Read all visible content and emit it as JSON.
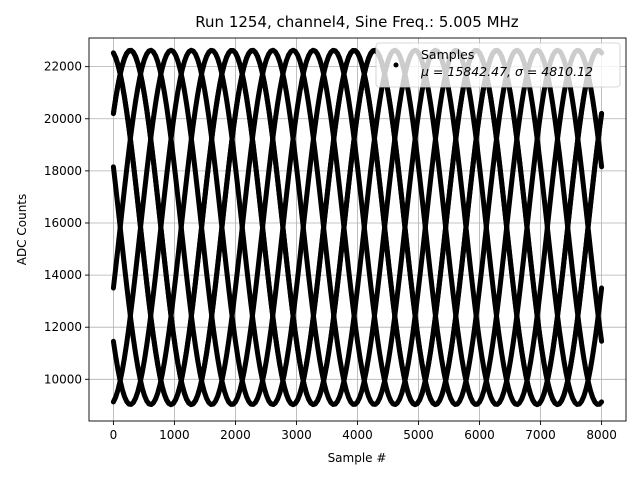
{
  "chart_data": {
    "type": "scatter",
    "title": "Run 1254, channel4, Sine Freq.: 5.005 MHz",
    "xlabel": "Sample #",
    "ylabel": "ADC Counts",
    "xlim": [
      -400,
      8400
    ],
    "ylim": [
      8400,
      23100
    ],
    "xticks": [
      0,
      1000,
      2000,
      3000,
      4000,
      5000,
      6000,
      7000,
      8000
    ],
    "yticks": [
      10000,
      12000,
      14000,
      16000,
      18000,
      20000,
      22000
    ],
    "grid": true,
    "legend": {
      "placement": "top-right",
      "title": "Samples",
      "stats": "μ = 15842.47, σ = 4810.12"
    },
    "series": [
      {
        "marker_color": "#000000",
        "model": {
          "mean": 15830,
          "amplitude": 6800,
          "period_samples": 2000,
          "x_start": 0,
          "x_end": 8000
        },
        "phases_deg": [
          100,
          40,
          -20,
          -80,
          -140,
          -200,
          -260,
          -320
        ]
      }
    ]
  }
}
